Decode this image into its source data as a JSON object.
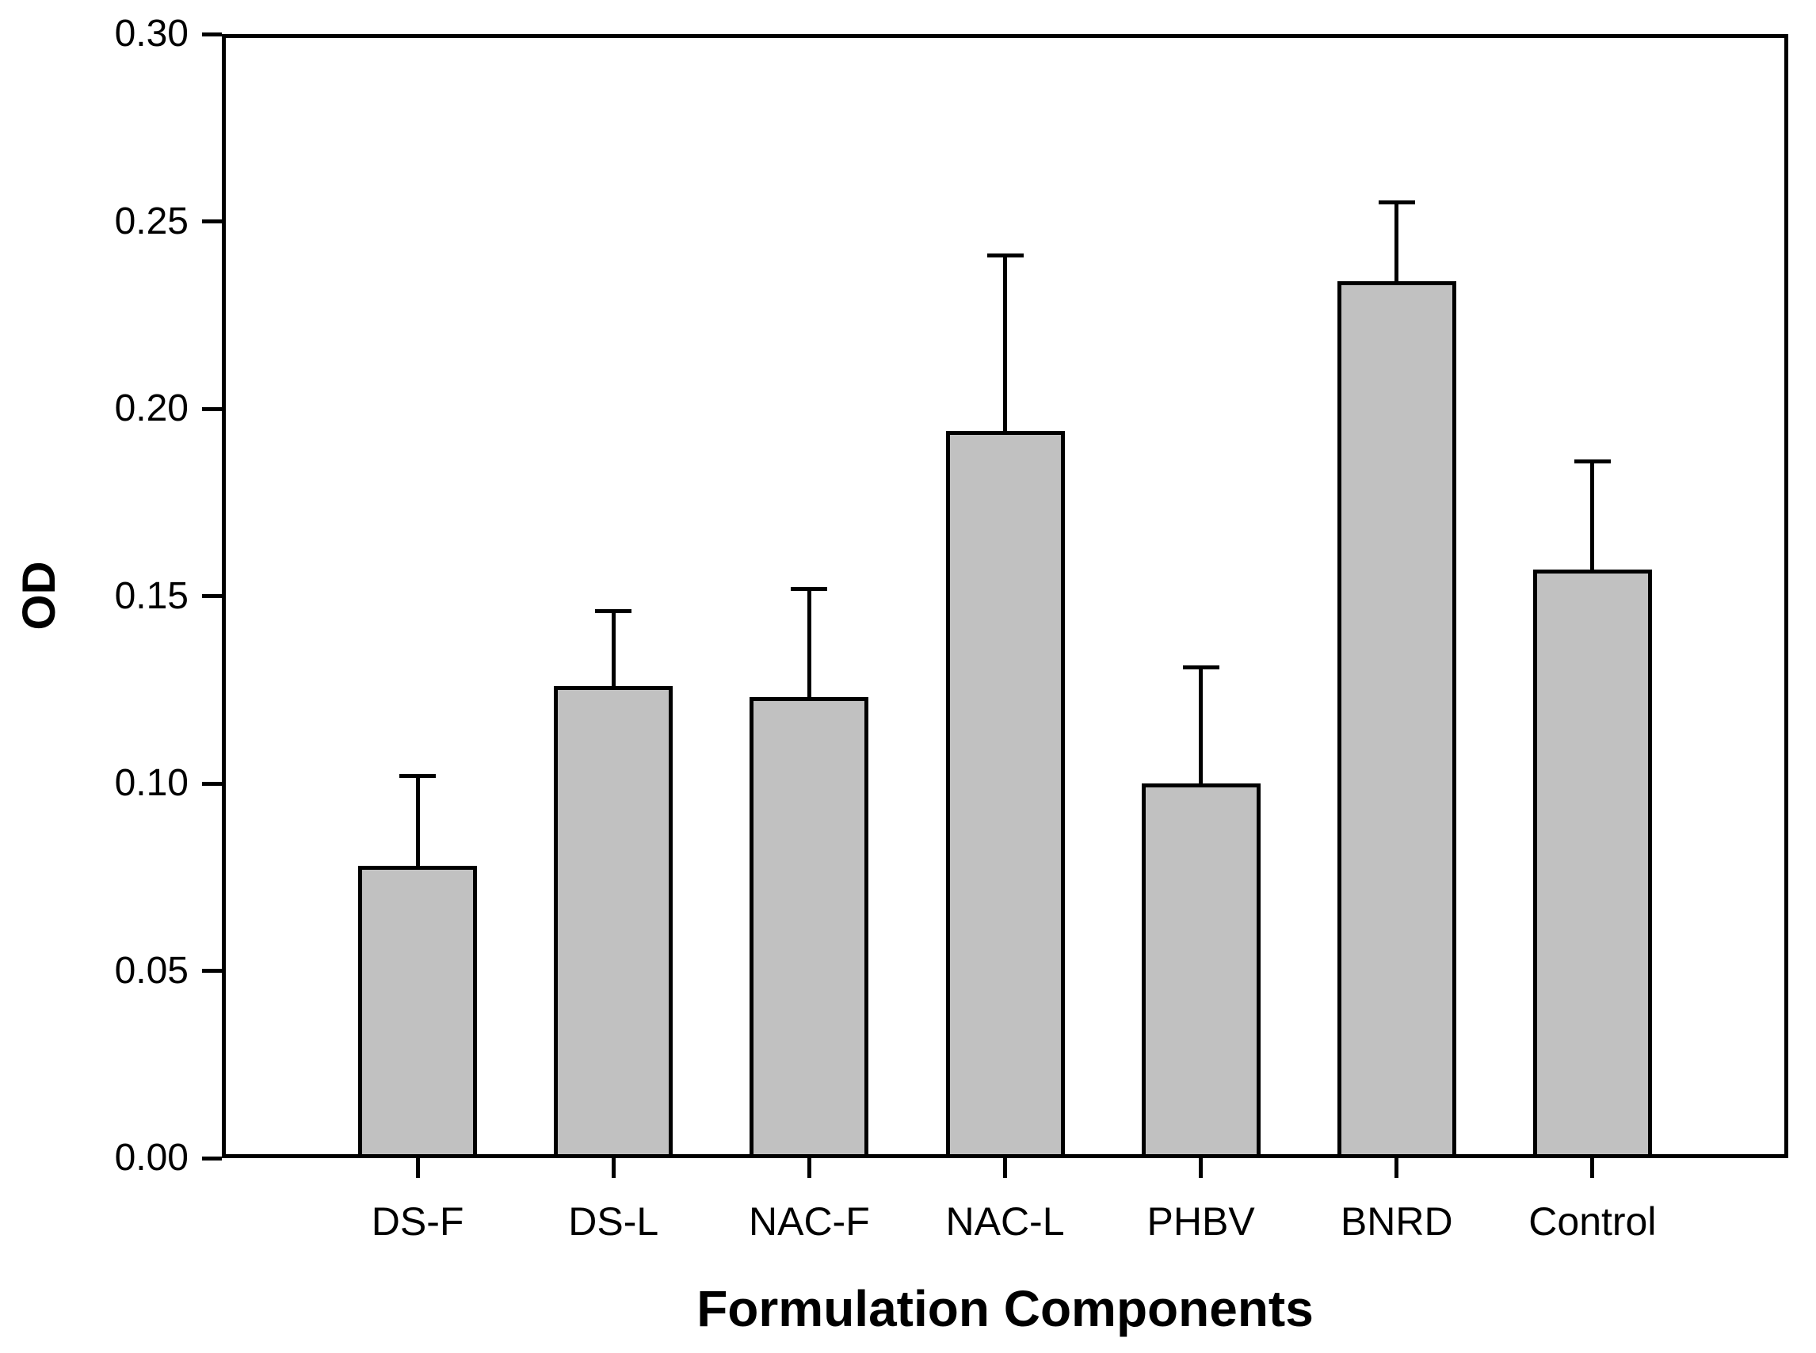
{
  "figure": {
    "background_color": "#ffffff"
  },
  "chart_data": {
    "type": "bar",
    "title": "",
    "xlabel": "Formulation Components",
    "ylabel": "OD",
    "categories": [
      "DS-F",
      "DS-L",
      "NAC-F",
      "NAC-L",
      "PHBV",
      "BNRD",
      "Control"
    ],
    "series": [
      {
        "name": "OD",
        "values": [
          0.078,
          0.126,
          0.123,
          0.194,
          0.1,
          0.234,
          0.157
        ],
        "errors_plus": [
          0.024,
          0.02,
          0.029,
          0.047,
          0.031,
          0.021,
          0.029
        ]
      }
    ],
    "ylim": [
      0.0,
      0.3
    ],
    "ytick_step": 0.05,
    "ytick_labels": [
      "0.00",
      "0.05",
      "0.10",
      "0.15",
      "0.20",
      "0.25",
      "0.30"
    ],
    "grid": false,
    "legend": null,
    "error_bars": "upper-only",
    "bar_fill_color": "#c1c1c1",
    "bar_edge_color": "#000000",
    "error_bar_color": "#000000",
    "axis_color": "#000000"
  }
}
